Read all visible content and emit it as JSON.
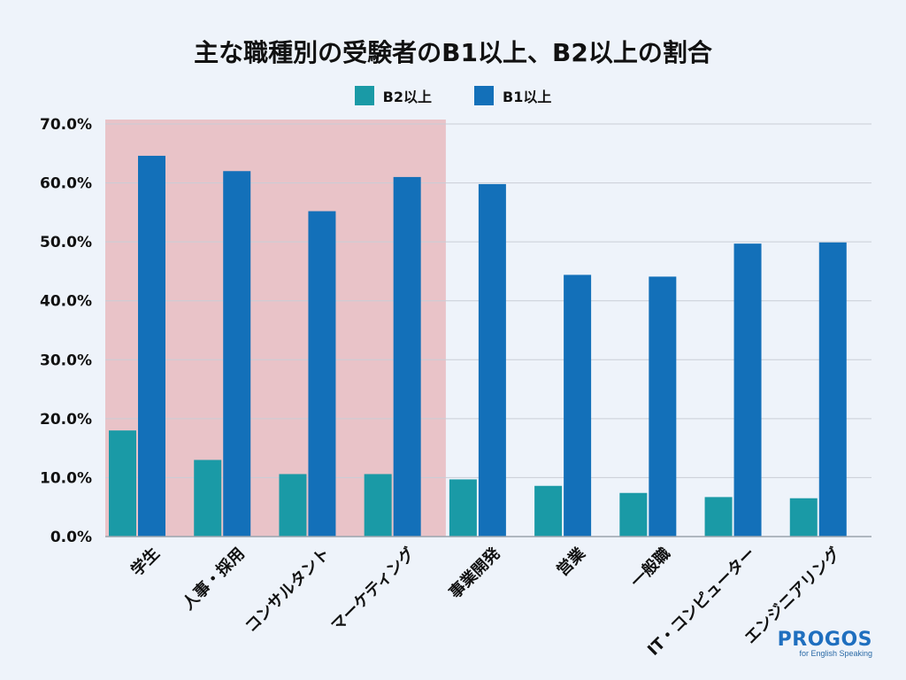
{
  "chart_data": {
    "type": "bar",
    "title": "主な職種別の受験者のB1以上、B2以上の割合",
    "categories": [
      "学生",
      "人事・採用",
      "コンサルタント",
      "マーケティング",
      "事業開発",
      "営業",
      "一般職",
      "IT・コンピューター",
      "エンジニアリング"
    ],
    "series": [
      {
        "name": "B2以上",
        "color": "#1a9aa6",
        "values": [
          18.0,
          13.0,
          10.6,
          10.6,
          9.7,
          8.6,
          7.4,
          6.7,
          6.5
        ]
      },
      {
        "name": "B1以上",
        "color": "#1370b9",
        "values": [
          64.6,
          62.0,
          55.2,
          61.0,
          59.8,
          44.4,
          44.1,
          49.7,
          49.9
        ]
      }
    ],
    "y_ticks": [
      "0.0%",
      "10.0%",
      "20.0%",
      "30.0%",
      "40.0%",
      "50.0%",
      "60.0%",
      "70.0%"
    ],
    "ylim": [
      0,
      70
    ],
    "highlighted_categories": [
      0,
      1,
      2,
      3
    ],
    "highlight_color": "#e9c3c8",
    "grid": true,
    "legend_position": "top-center"
  },
  "logo": {
    "name": "PROGOS",
    "tagline": "for English Speaking"
  }
}
